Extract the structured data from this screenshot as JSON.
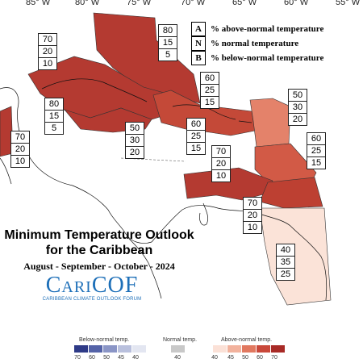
{
  "title": {
    "line1": "Minimum Temperature Outlook",
    "line2": "for the Caribbean",
    "period": "August - September - October - 2024"
  },
  "logo": {
    "name": "CariCOF",
    "tagline": "CARIBBEAN CLIMATE OUTLOOK FORUM"
  },
  "longitudes": [
    "85° W",
    "80° W",
    "75° W",
    "70° W",
    "65° W",
    "60° W",
    "55° W"
  ],
  "key": [
    {
      "letter": "A",
      "text": "% above-normal temperature"
    },
    {
      "letter": "N",
      "text": "% normal temperature"
    },
    {
      "letter": "B",
      "text": "% below-normal temperature"
    }
  ],
  "probability_boxes": [
    {
      "above": "80",
      "normal": "15",
      "below": "5"
    },
    {
      "above": "70",
      "normal": "20",
      "below": "10"
    },
    {
      "above": "60",
      "normal": "25",
      "below": "15"
    },
    {
      "above": "50",
      "normal": "30",
      "below": "20"
    },
    {
      "above": "80",
      "normal": "15",
      "below": "5"
    },
    {
      "above": "50",
      "normal": "30",
      "below": "20"
    },
    {
      "above": "60",
      "normal": "25",
      "below": "15"
    },
    {
      "above": "60",
      "normal": "25",
      "below": "15"
    },
    {
      "above": "70",
      "normal": "20",
      "below": "10"
    },
    {
      "above": "70",
      "normal": "20",
      "below": "10"
    },
    {
      "above": "70",
      "normal": "20",
      "below": "10"
    },
    {
      "above": "40",
      "normal": "35",
      "below": "25"
    }
  ],
  "legend": {
    "below_label": "Below-normal temp.",
    "normal_label": "Normal temp.",
    "above_label": "Above-normal temp.",
    "below_ticks": [
      "70",
      "60",
      "50",
      "45",
      "40"
    ],
    "normal_tick": "40",
    "above_ticks": [
      "40",
      "45",
      "50",
      "60",
      "70"
    ],
    "below_colors": [
      "#2e3a87",
      "#5463a8",
      "#8a95c6",
      "#b9c0dd",
      "#e3e6f1"
    ],
    "normal_color": "#c8c8c8",
    "above_colors": [
      "#fbe1d7",
      "#f2b29d",
      "#e1785f",
      "#c9483a",
      "#a82a26"
    ]
  }
}
